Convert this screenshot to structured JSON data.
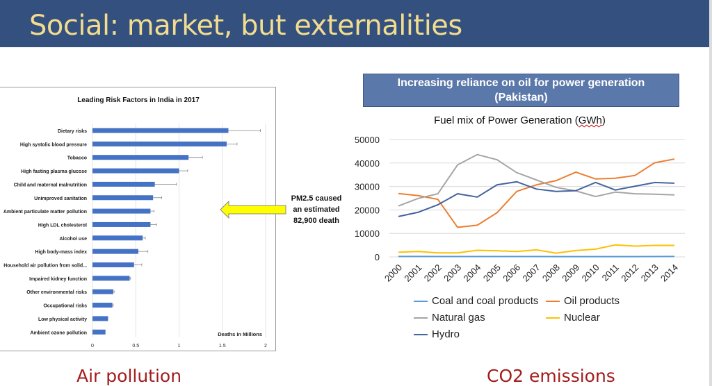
{
  "slide": {
    "title": "Social: market, but externalities"
  },
  "captions": {
    "left": "Air pollution",
    "right": "CO2 emissions"
  },
  "callout": {
    "lines": [
      "PM2.5 caused",
      "an estimated",
      "82,900 death"
    ],
    "arrow_color": "#ffff00"
  },
  "chart_box": {
    "title": "Increasing reliance on oil for power generation",
    "subtitle": "(Pakistan)"
  },
  "chart_data": [
    {
      "type": "bar",
      "orientation": "horizontal",
      "title": "Leading Risk Factors in India in 2017",
      "xlabel": "Deaths in Millions",
      "xlim": [
        0,
        2
      ],
      "xticks": [
        "0",
        "0.5",
        "1",
        "1.5",
        "2"
      ],
      "color": "#4472c4",
      "grid": true,
      "categories": [
        "Dietary risks",
        "High systolic blood pressure",
        "Tobacco",
        "High fasting plasma glucose",
        "Child and maternal malnutrition",
        "Unimproved sanitation",
        "Ambient particulate matter pollution",
        "High LDL cholesterol",
        "Alcohol use",
        "High body-mass index",
        "Household air pollution from solid...",
        "Impaired kidney function",
        "Other environmental risks",
        "Occupational risks",
        "Low physical activity",
        "Ambient ozone pollution"
      ],
      "values": [
        1.57,
        1.55,
        1.11,
        1.0,
        0.72,
        0.7,
        0.67,
        0.67,
        0.58,
        0.53,
        0.48,
        0.43,
        0.24,
        0.23,
        0.18,
        0.15
      ],
      "error_upper": [
        1.94,
        1.67,
        1.27,
        1.1,
        0.97,
        0.8,
        0.71,
        0.74,
        0.61,
        0.64,
        0.57,
        0.44,
        0.25,
        0.24,
        0.18,
        0.15
      ]
    },
    {
      "type": "line",
      "title": "Fuel mix of Power Generation (GWh)",
      "title_main": "Fuel mix of Power Generation (",
      "title_unit": "GWh",
      "title_end": ")",
      "ylim": [
        0,
        50000
      ],
      "yticks": [
        "0",
        "10000",
        "20000",
        "30000",
        "40000",
        "50000"
      ],
      "grid": true,
      "legend": "bottom",
      "x": [
        "2000",
        "2001",
        "2002",
        "2003",
        "2004",
        "2005",
        "2006",
        "2007",
        "2008",
        "2009",
        "2010",
        "2011",
        "2012",
        "2013",
        "2014"
      ],
      "series": [
        {
          "name": "Coal and coal products",
          "color": "#5b9bd5",
          "values": [
            200,
            200,
            150,
            150,
            150,
            150,
            150,
            150,
            100,
            100,
            100,
            100,
            100,
            150,
            200
          ]
        },
        {
          "name": "Oil products",
          "color": "#ed7d31",
          "values": [
            27000,
            26100,
            24500,
            12600,
            13500,
            18800,
            27900,
            30700,
            32500,
            36100,
            33200,
            33500,
            34700,
            40100,
            41700
          ]
        },
        {
          "name": "Natural gas",
          "color": "#a5a5a5",
          "values": [
            21700,
            24900,
            26900,
            39200,
            43600,
            41400,
            35900,
            32800,
            29600,
            28100,
            25700,
            27600,
            26900,
            26700,
            26400
          ]
        },
        {
          "name": "Nuclear",
          "color": "#ffc000",
          "values": [
            2000,
            2300,
            1700,
            1700,
            2800,
            2600,
            2300,
            3000,
            1600,
            2700,
            3300,
            5100,
            4600,
            4900,
            4900
          ]
        },
        {
          "name": "Hydro",
          "color": "#44649e",
          "values": [
            17200,
            19000,
            22200,
            26900,
            25500,
            30700,
            32000,
            28900,
            27900,
            28200,
            31700,
            28500,
            30100,
            31700,
            31400
          ]
        }
      ]
    }
  ]
}
